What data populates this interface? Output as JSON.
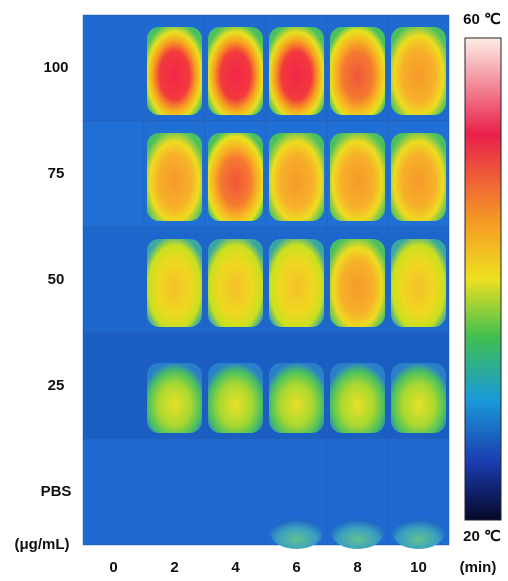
{
  "rows": [
    "100",
    "75",
    "50",
    "25",
    "PBS"
  ],
  "row_unit": "(μg/mL)",
  "columns": [
    "0",
    "2",
    "4",
    "6",
    "8",
    "10"
  ],
  "column_unit": "(min)",
  "colorbar": {
    "max_label": "60 ℃",
    "min_label": "20 ℃"
  }
}
